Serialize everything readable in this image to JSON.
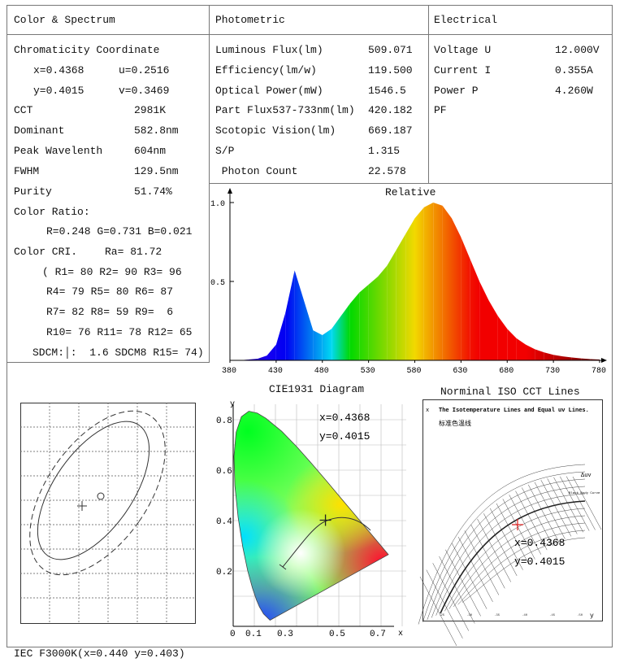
{
  "color_spectrum": {
    "header": "Color & Spectrum",
    "chromaticity_title": "Chromaticity Coordinate",
    "x": "x=0.4368",
    "u": "u=0.2516",
    "y": "y=0.4015",
    "v": "v=0.3469",
    "rows": [
      {
        "label": "CCT",
        "value": "2981K"
      },
      {
        "label": "Dominant",
        "value": "582.8nm"
      },
      {
        "label": "Peak Wavelenth",
        "value": "604nm"
      },
      {
        "label": "FWHM",
        "value": "129.5nm"
      },
      {
        "label": "Purity",
        "value": "51.74%"
      }
    ],
    "color_ratio_label": "Color Ratio:",
    "color_ratio": "R=0.248 G=0.731 B=0.021",
    "cri_label": "Color CRI.",
    "ra": "Ra= 81.72",
    "cri_lines": [
      "( R1= 80 R2= 90 R3= 96",
      "R4= 79 R5= 80 R6= 87",
      "R7= 82 R8= 59 R9=  6",
      "R10= 76 R11= 78 R12= 65",
      "SDCM:│:  1.6 SDCM8 R15= 74)"
    ]
  },
  "photometric": {
    "header": "Photometric",
    "rows": [
      {
        "label": "Luminous Flux(lm)",
        "value": "509.071"
      },
      {
        "label": "Efficiency(lm/w)",
        "value": "119.500"
      },
      {
        "label": "Optical Power(mW)",
        "value": "1546.5"
      },
      {
        "label": "Part Flux537-733nm(lm)",
        "value": "420.182"
      },
      {
        "label": "Scotopic Vision(lm)",
        "value": "669.187"
      },
      {
        "label": "S/P",
        "value": "1.315"
      },
      {
        "label": " Photon Count",
        "value": "22.578"
      }
    ]
  },
  "electrical": {
    "header": "Electrical",
    "rows": [
      {
        "label": "Voltage U",
        "value": "12.000V"
      },
      {
        "label": "Current I",
        "value": "0.355A"
      },
      {
        "label": "Power P",
        "value": "4.260W"
      },
      {
        "label": "PF",
        "value": ""
      }
    ]
  },
  "chart_data": [
    {
      "type": "area",
      "title": "Relative",
      "xlim": [
        380,
        780
      ],
      "ylim": [
        0,
        1.0
      ],
      "xticks": [
        "380",
        "430",
        "480",
        "530",
        "580",
        "630",
        "680",
        "730",
        "780"
      ],
      "yticks": [
        "0.5",
        "1.0"
      ],
      "x": [
        380,
        390,
        400,
        410,
        420,
        430,
        440,
        450,
        460,
        470,
        480,
        490,
        500,
        510,
        520,
        530,
        540,
        550,
        560,
        570,
        580,
        590,
        600,
        610,
        620,
        630,
        640,
        650,
        660,
        670,
        680,
        690,
        700,
        710,
        720,
        730,
        740,
        750,
        760,
        770,
        780
      ],
      "values": [
        0,
        0,
        0.005,
        0.01,
        0.03,
        0.1,
        0.3,
        0.57,
        0.38,
        0.19,
        0.16,
        0.2,
        0.28,
        0.36,
        0.43,
        0.48,
        0.53,
        0.6,
        0.7,
        0.8,
        0.9,
        0.97,
        1.0,
        0.98,
        0.9,
        0.78,
        0.64,
        0.5,
        0.38,
        0.28,
        0.2,
        0.14,
        0.1,
        0.07,
        0.05,
        0.035,
        0.025,
        0.018,
        0.012,
        0.008,
        0.005
      ]
    },
    {
      "type": "scatter",
      "title": "CIE1931 Diagram",
      "xlabel": "x",
      "ylabel": "y",
      "xticks": [
        "0",
        "0.1",
        "0.3",
        "0.5",
        "0.7"
      ],
      "yticks": [
        "0.2",
        "0.4",
        "0.6",
        "0.8"
      ],
      "point": {
        "x": 0.4368,
        "y": 0.4015
      },
      "label_x": "x=0.4368",
      "label_y": "y=0.4015"
    }
  ],
  "iso_cct": {
    "title": "Norminal ISO CCT Lines",
    "subtitle": "The Isotemperature Lines and Equal uv Lines.",
    "chinese_caption": "标准色温线",
    "duv_label": "Δuv",
    "curve_label": "Black Body Curve",
    "axis_x": "x",
    "axis_y": "y",
    "label_x": "x=0.4368",
    "label_y": "y=0.4015"
  },
  "footer": "IEC F3000K(x=0.440 y=0.403)"
}
